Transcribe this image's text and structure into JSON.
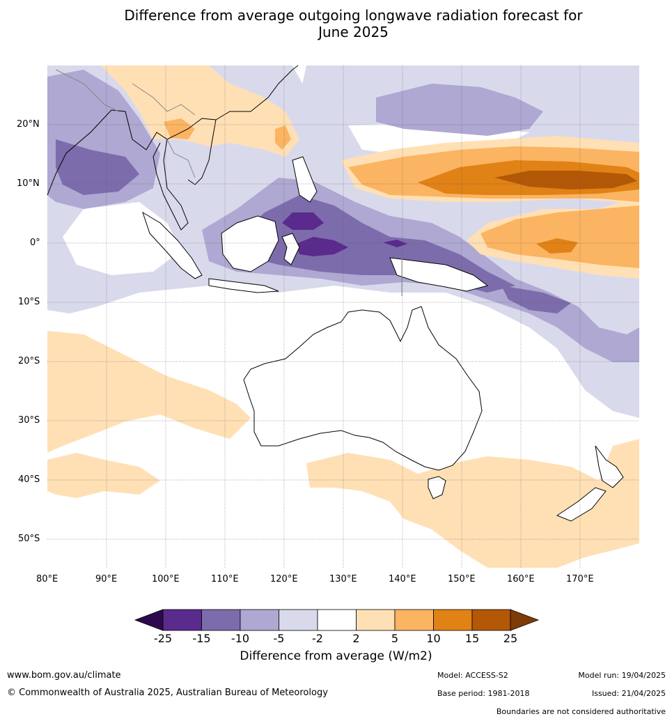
{
  "title": {
    "line1": "Difference from average outgoing longwave radiation forecast for",
    "line2": "June 2025"
  },
  "map": {
    "lon_labels": [
      "80°E",
      "90°E",
      "100°E",
      "110°E",
      "120°E",
      "130°E",
      "140°E",
      "150°E",
      "160°E",
      "170°E"
    ],
    "lat_labels": [
      "20°N",
      "10°N",
      "0°",
      "10°S",
      "20°S",
      "30°S",
      "40°S",
      "50°S"
    ]
  },
  "colorbar": {
    "ticks": [
      "-25",
      "-15",
      "-10",
      "-5",
      "-2",
      "2",
      "5",
      "10",
      "15",
      "25"
    ],
    "colors": [
      "#2d0a4e",
      "#5a2a8c",
      "#7d6cab",
      "#aea8d2",
      "#d9d9ec",
      "#ffffff",
      "#ffe0b5",
      "#fbb462",
      "#e08216",
      "#b35806",
      "#7f3b08"
    ],
    "label": "Difference from average (W/m2)"
  },
  "footer": {
    "website": "www.bom.gov.au/climate",
    "copyright": "© Commonwealth of Australia 2025, Australian Bureau of Meteorology",
    "model": "Model: ACCESS-S2",
    "base_period": "Base period: 1981-2018",
    "model_run": "Model run: 19/04/2025",
    "issued": "Issued: 21/04/2025",
    "disclaimer": "Boundaries are not considered authoritative"
  }
}
